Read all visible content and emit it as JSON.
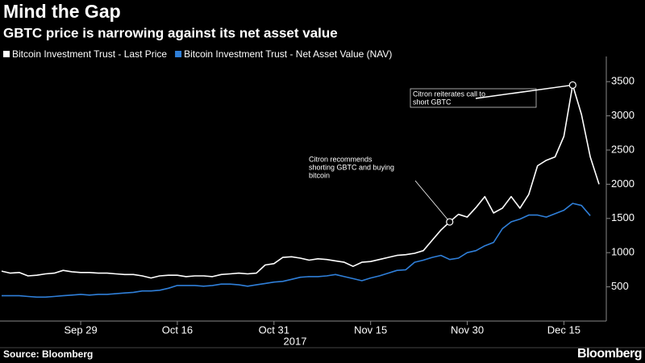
{
  "chart_data": {
    "type": "line",
    "title": "Mind the Gap",
    "subtitle": "GBTC price is narrowing against its net asset value",
    "source": "Source: Bloomberg",
    "brand": "Bloomberg",
    "x_label": "2017",
    "categories": [
      null,
      null,
      null,
      null,
      null,
      null,
      null,
      null,
      null,
      "Sep 29",
      null,
      null,
      null,
      null,
      null,
      null,
      null,
      null,
      null,
      null,
      "Oct 16",
      null,
      null,
      null,
      null,
      null,
      null,
      null,
      null,
      null,
      null,
      "Oct 31",
      null,
      null,
      null,
      null,
      null,
      null,
      null,
      null,
      null,
      null,
      "Nov 15",
      null,
      null,
      null,
      null,
      null,
      null,
      null,
      null,
      null,
      null,
      "Nov 30",
      null,
      null,
      null,
      null,
      null,
      null,
      null,
      null,
      null,
      null,
      "Dec 15",
      null,
      null,
      null,
      null
    ],
    "series": [
      {
        "name": "Bitcoin Investment Trust - Last Price",
        "color": "#ffffff",
        "values": [
          730,
          700,
          710,
          660,
          670,
          690,
          700,
          740,
          720,
          710,
          710,
          700,
          700,
          690,
          680,
          680,
          660,
          630,
          660,
          670,
          670,
          650,
          660,
          660,
          650,
          680,
          690,
          700,
          690,
          700,
          820,
          840,
          930,
          940,
          920,
          890,
          910,
          900,
          880,
          860,
          800,
          860,
          870,
          900,
          930,
          960,
          970,
          990,
          1030,
          1180,
          1330,
          1450,
          1560,
          1520,
          1660,
          1820,
          1580,
          1650,
          1820,
          1650,
          1850,
          2270,
          2350,
          2400,
          2700,
          3450,
          3020,
          2400,
          2000
        ]
      },
      {
        "name": "Bitcoin Investment Trust - Net Asset Value (NAV)",
        "color": "#2f7fd9",
        "values": [
          370,
          370,
          370,
          360,
          350,
          350,
          360,
          370,
          380,
          390,
          380,
          390,
          390,
          400,
          410,
          420,
          440,
          440,
          450,
          480,
          520,
          520,
          520,
          510,
          520,
          540,
          540,
          530,
          510,
          530,
          550,
          570,
          580,
          610,
          640,
          650,
          650,
          660,
          680,
          650,
          620,
          590,
          630,
          660,
          700,
          740,
          750,
          860,
          890,
          930,
          960,
          900,
          920,
          1000,
          1030,
          1100,
          1150,
          1350,
          1450,
          1490,
          1550,
          1550,
          1520,
          1570,
          1620,
          1720,
          1690,
          1540,
          null
        ]
      }
    ],
    "ylim": [
      0,
      3750
    ],
    "yticks": [
      500,
      1000,
      1500,
      2000,
      2500,
      3000,
      3500
    ],
    "grid": false,
    "annotations": [
      {
        "text": [
          "Citron recommends",
          "shorting GBTC and buying",
          "bitcoin"
        ]
      },
      {
        "text": [
          "Citron reiterates call to",
          "short GBTC"
        ]
      }
    ]
  }
}
